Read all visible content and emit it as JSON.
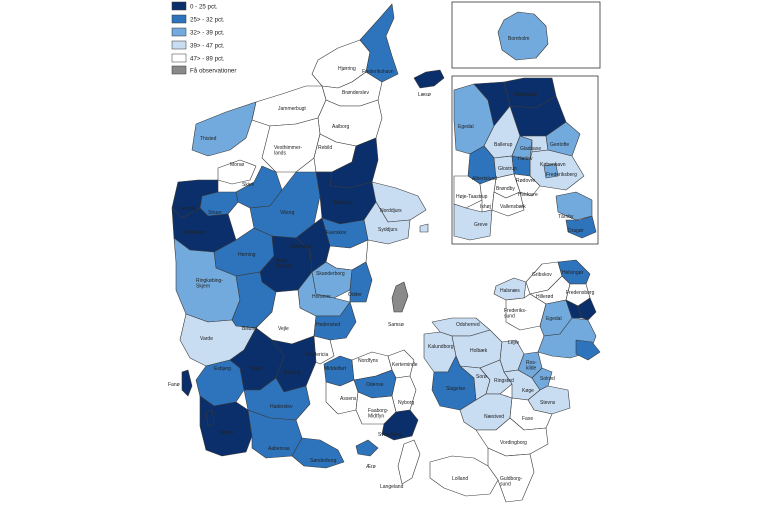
{
  "legend": {
    "items": [
      {
        "label": "0 - 25 pct.",
        "color": "#0b2f6b"
      },
      {
        "label": "25> - 32 pct.",
        "color": "#2e74bd"
      },
      {
        "label": "32> - 39 pct.",
        "color": "#72aadd"
      },
      {
        "label": "39> - 47 pct.",
        "color": "#c8dcf2"
      },
      {
        "label": "47> - 89 pct.",
        "color": "#ffffff"
      },
      {
        "label": "Få observationer",
        "color": "#8a8a8a"
      }
    ]
  },
  "municipalities": {
    "hjorring": "Hjørring",
    "frederikshavn": "Frederikshavn",
    "laeso": "Læsø",
    "bronderslev": "Brønderslev",
    "jammerbugt": "Jammerbugt",
    "thisted": "Thisted",
    "aalborg": "Aalborg",
    "vesthimmerland": "Vesthimmer-\nlands",
    "rebild": "Rebild",
    "morso": "Morsø",
    "skive": "Skive",
    "struer": "Struer",
    "lemvig": "Lemvig",
    "holstebro": "Holstebro",
    "viborg": "Viborg",
    "randers": "Randers",
    "norddjurs": "Norddjurs",
    "syddjurs": "Syddjurs",
    "favrskov": "Favrskov",
    "herning": "Herning",
    "ikast_brande": "Ikast-\nBrande",
    "silkeborg": "Silkeborg",
    "skanderborg": "Skanderborg",
    "horsens": "Horsens",
    "odder": "Odder",
    "samso": "Samsø",
    "ringkobing": "Ringkøbing-\nSkjern",
    "billund": "Billund",
    "vejle": "Vejle",
    "hedensted": "Hedensted",
    "varde": "Varde",
    "fano": "Fanø",
    "esbjerg": "Esbjerg",
    "vejen": "Vejen",
    "kolding": "Kolding",
    "fredericia": "Fredericia",
    "middelfart": "Middelfart",
    "haderslev": "Haderslev",
    "tonder": "Tønder",
    "aabenraa": "Aabenraa",
    "sonderborg": "Sønderborg",
    "nordfyns": "Nordfyns",
    "kerteminde": "Kerteminde",
    "odense": "Odense",
    "assens": "Assens",
    "faaborg": "Faaborg-\nMidtfyn",
    "nyborg": "Nyborg",
    "svendborg": "Svendborg",
    "aero": "Ærø",
    "langeland": "Langeland",
    "odsherred": "Odsherred",
    "kalundborg": "Kalundborg",
    "holbaek": "Holbæk",
    "soro": "Sorø",
    "ringsted": "Ringsted",
    "slagelse": "Slagelse",
    "naestved": "Næstved",
    "koge": "Køge",
    "stevns": "Stevns",
    "faxe": "Faxe",
    "vordingborg": "Vordingborg",
    "guldborgsund": "Guldborg-\nsund",
    "lolland": "Lolland",
    "halsnaes": "Halsnæs",
    "gribskov": "Gribskov",
    "helsingor": "Helsingør",
    "hillerod": "Hillerød",
    "fredensborg": "Fredensborg",
    "frederikssund": "Frederiks-\nsund",
    "egedal": "Egedal",
    "lejre": "Lejre",
    "roskilde": "Ros-\nkilde",
    "solrod": "Solrød",
    "bornholm": "Bornholm"
  },
  "capital_inset": {
    "rudersdal": "Rudersdal",
    "egedal": "Egedal",
    "ballerup": "Ballerup",
    "gladsaxe": "Gladsaxe",
    "gentofte": "Gentofte",
    "herlev": "Herlev",
    "kobenhavn": "København",
    "frederiksberg": "Frederiksberg",
    "albertslund": "Albertslund",
    "glostrup": "Glostrup",
    "rodovre": "Rødovre",
    "brondby": "Brøndby",
    "hvidovre": "Hvidovre",
    "hoje_taastrup": "Høje-Taastrup",
    "ishoj": "Ishøj",
    "vallensbaek": "Vallensbæk",
    "greve": "Greve",
    "taarnby": "Tårnby",
    "dragor": "Dragør"
  }
}
